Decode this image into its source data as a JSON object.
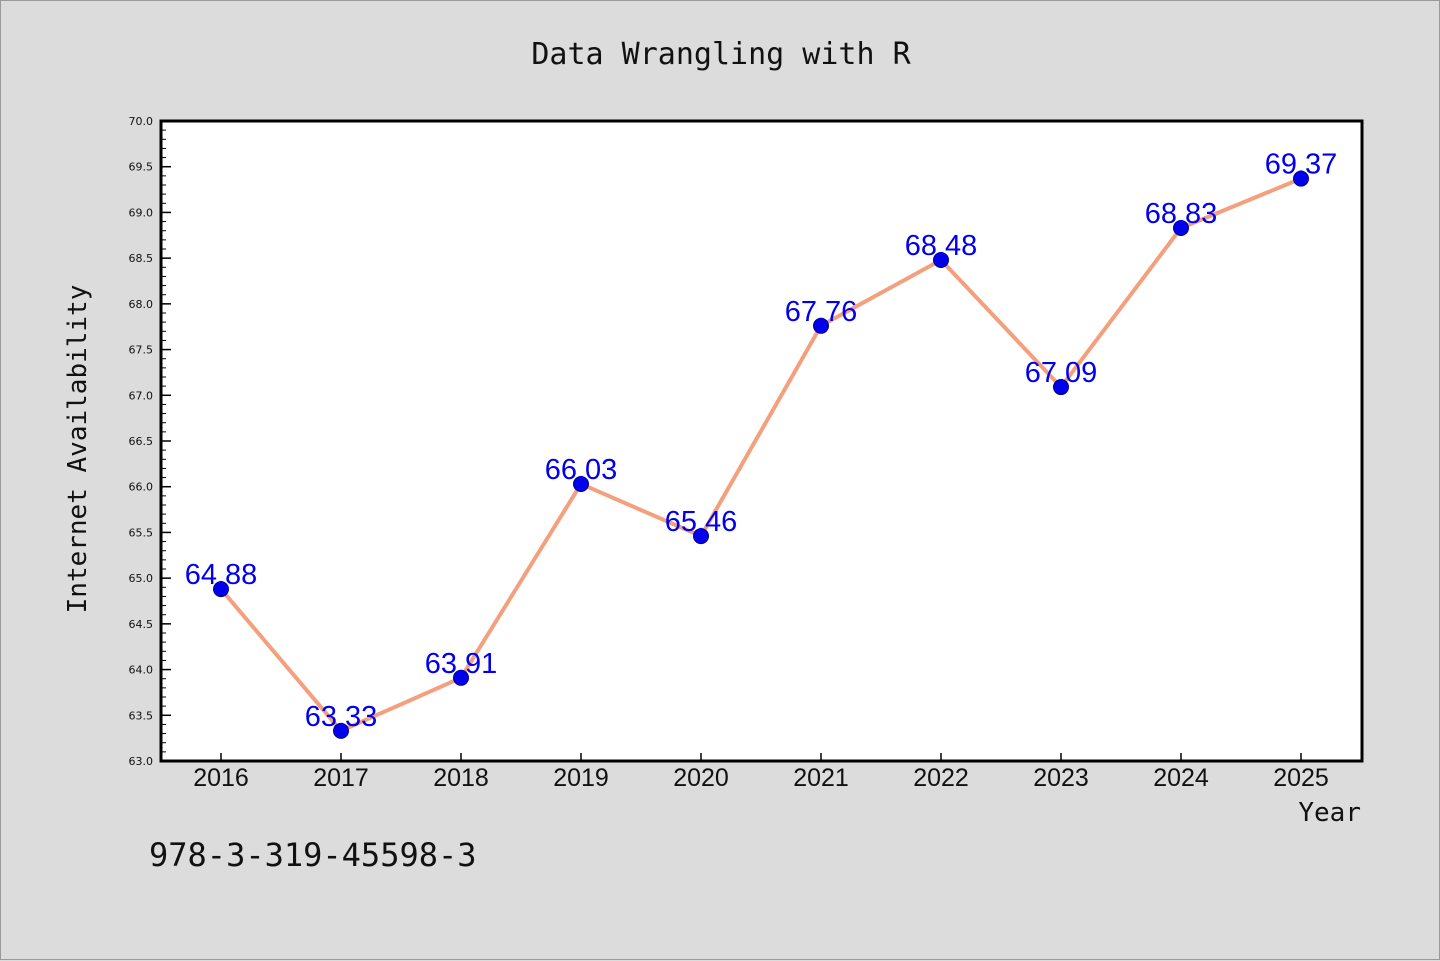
{
  "chart_data": {
    "type": "line",
    "title": "Data Wrangling with R",
    "xlabel": "Year",
    "ylabel": "Internet Availability",
    "categories": [
      "2016",
      "2017",
      "2018",
      "2019",
      "2020",
      "2021",
      "2022",
      "2023",
      "2024",
      "2025"
    ],
    "values": [
      64.88,
      63.33,
      63.91,
      66.03,
      65.46,
      67.76,
      68.48,
      67.09,
      68.83,
      69.37
    ],
    "data_labels": [
      "64.88",
      "63.33",
      "63.91",
      "66.03",
      "65.46",
      "67.76",
      "68.48",
      "67.09",
      "68.83",
      "69.37"
    ],
    "ylim": [
      63.0,
      70.0
    ],
    "yticks": [
      "63.0",
      "63.5",
      "64.0",
      "64.5",
      "65.0",
      "65.5",
      "66.0",
      "66.5",
      "67.0",
      "67.5",
      "68.0",
      "68.5",
      "69.0",
      "69.5",
      "70.0"
    ],
    "grid": false,
    "legend": "none",
    "colors": {
      "line": "#f4a07e",
      "marker": "#0000ee",
      "marker_edge": "#000080",
      "data_label": "#0000ee",
      "background": "#dcdcdc",
      "plot_background": "#ffffff"
    }
  },
  "footer": {
    "text": "978-3-319-45598-3"
  }
}
